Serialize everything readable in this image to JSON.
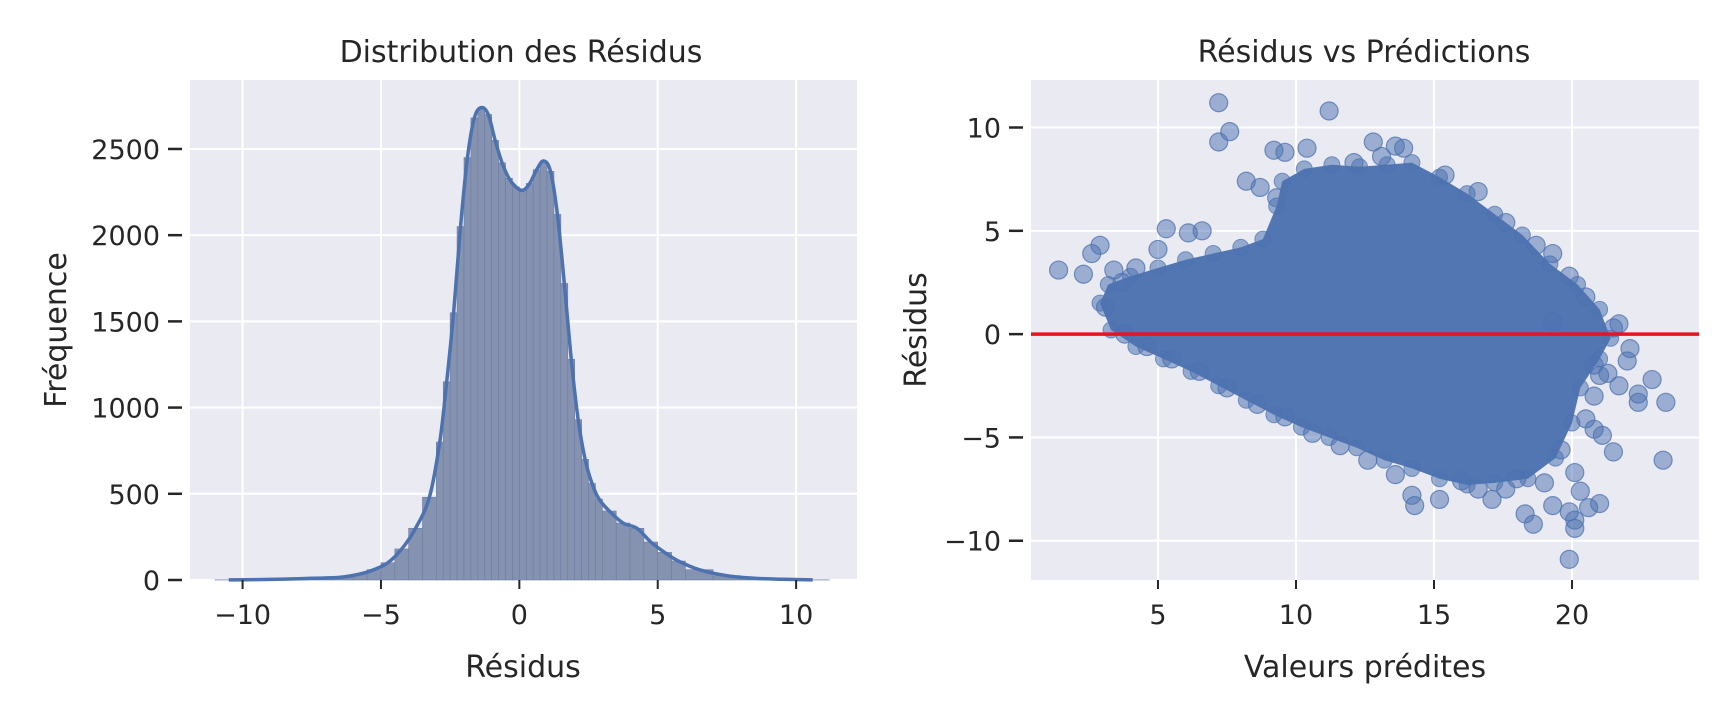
{
  "chart_data": [
    {
      "type": "bar",
      "title": "Distribution des Résidus",
      "xlabel": "Résidus",
      "ylabel": "Fréquence",
      "xlim": [
        -11.9,
        12.2
      ],
      "ylim": [
        0,
        2900
      ],
      "xticks": [
        -10,
        -5,
        0,
        5,
        10
      ],
      "xtick_labels": [
        "−10",
        "−5",
        "0",
        "5",
        "10"
      ],
      "yticks": [
        0,
        500,
        1000,
        1500,
        2000,
        2500
      ],
      "ytick_labels": [
        "0",
        "500",
        "1000",
        "1500",
        "2000",
        "2500"
      ],
      "grid": true,
      "kde_line": true,
      "bin_edges": [
        -11,
        -10,
        -9,
        -8,
        -7,
        -6,
        -5.5,
        -5,
        -4.5,
        -4,
        -3.5,
        -3,
        -2.75,
        -2.5,
        -2.25,
        -2,
        -1.75,
        -1.5,
        -1.25,
        -1,
        -0.75,
        -0.5,
        -0.25,
        0,
        0.25,
        0.5,
        0.75,
        1,
        1.25,
        1.5,
        1.75,
        2,
        2.25,
        2.5,
        2.75,
        3,
        3.5,
        4,
        4.5,
        5,
        5.5,
        6,
        7,
        8,
        9,
        10,
        11.2
      ],
      "counts": [
        1,
        2,
        5,
        10,
        15,
        35,
        60,
        100,
        180,
        300,
        480,
        800,
        1150,
        1550,
        2050,
        2450,
        2680,
        2740,
        2700,
        2550,
        2420,
        2330,
        2280,
        2260,
        2300,
        2380,
        2430,
        2370,
        2120,
        1720,
        1280,
        930,
        700,
        560,
        470,
        400,
        330,
        300,
        220,
        160,
        110,
        60,
        25,
        10,
        4,
        1
      ]
    },
    {
      "type": "scatter",
      "title": "Résidus vs Prédictions",
      "xlabel": "Valeurs prédites",
      "ylabel": "Résidus",
      "xlim": [
        0.4,
        24.6
      ],
      "ylim": [
        -11.9,
        12.3
      ],
      "xticks": [
        5,
        10,
        15,
        20
      ],
      "xtick_labels": [
        "5",
        "10",
        "15",
        "20"
      ],
      "yticks": [
        -10,
        -5,
        0,
        5,
        10
      ],
      "ytick_labels": [
        "−10",
        "−5",
        "0",
        "5",
        "10"
      ],
      "grid": true,
      "reference_line_y": 0,
      "reference_line_color": "#e8141e",
      "outlier_points": [
        {
          "x": 1.4,
          "y": 3.1
        },
        {
          "x": 2.3,
          "y": 2.9
        },
        {
          "x": 2.6,
          "y": 3.9
        },
        {
          "x": 2.9,
          "y": 4.3
        },
        {
          "x": 3.4,
          "y": 3.1
        },
        {
          "x": 7.2,
          "y": 11.2
        },
        {
          "x": 7.2,
          "y": 9.3
        },
        {
          "x": 7.6,
          "y": 9.8
        },
        {
          "x": 11.2,
          "y": 10.8
        },
        {
          "x": 9.2,
          "y": 8.9
        },
        {
          "x": 9.6,
          "y": 8.8
        },
        {
          "x": 10.4,
          "y": 9.0
        },
        {
          "x": 12.8,
          "y": 9.3
        },
        {
          "x": 13.9,
          "y": 9.0
        },
        {
          "x": 5.3,
          "y": 5.1
        },
        {
          "x": 6.1,
          "y": 4.9
        },
        {
          "x": 8.2,
          "y": 7.4
        },
        {
          "x": 14.2,
          "y": -7.8
        },
        {
          "x": 14.3,
          "y": -8.3
        },
        {
          "x": 15.2,
          "y": -8.0
        },
        {
          "x": 17.1,
          "y": -8.0
        },
        {
          "x": 17.6,
          "y": -7.5
        },
        {
          "x": 18.3,
          "y": -8.7
        },
        {
          "x": 18.6,
          "y": -9.2
        },
        {
          "x": 19.3,
          "y": -8.3
        },
        {
          "x": 19.9,
          "y": -8.6
        },
        {
          "x": 20.1,
          "y": -9.0
        },
        {
          "x": 20.1,
          "y": -9.4
        },
        {
          "x": 19.9,
          "y": -10.9
        },
        {
          "x": 20.6,
          "y": -8.4
        },
        {
          "x": 21.0,
          "y": -8.2
        },
        {
          "x": 20.3,
          "y": -7.6
        },
        {
          "x": 21.5,
          "y": -5.7
        },
        {
          "x": 21.1,
          "y": -4.9
        },
        {
          "x": 20.8,
          "y": -4.6
        },
        {
          "x": 22.4,
          "y": -2.9
        },
        {
          "x": 22.4,
          "y": -3.3
        },
        {
          "x": 22.9,
          "y": -2.2
        },
        {
          "x": 23.4,
          "y": -3.3
        },
        {
          "x": 23.3,
          "y": -6.1
        },
        {
          "x": 21.7,
          "y": -2.5
        },
        {
          "x": 22.0,
          "y": -1.3
        },
        {
          "x": 21.5,
          "y": 0.3
        },
        {
          "x": 21.7,
          "y": 0.5
        },
        {
          "x": 22.1,
          "y": -0.7
        },
        {
          "x": 21.3,
          "y": -1.9
        },
        {
          "x": 20.8,
          "y": -1.5
        },
        {
          "x": 20.5,
          "y": 1.8
        },
        {
          "x": 19.9,
          "y": 2.8
        },
        {
          "x": 19.3,
          "y": 3.9
        },
        {
          "x": 18.7,
          "y": 4.3
        },
        {
          "x": 17.6,
          "y": 5.4
        },
        {
          "x": 16.6,
          "y": 6.9
        },
        {
          "x": 15.4,
          "y": 7.7
        },
        {
          "x": 13.1,
          "y": 8.6
        },
        {
          "x": 12.1,
          "y": 8.3
        },
        {
          "x": 9.3,
          "y": 6.6
        },
        {
          "x": 8.7,
          "y": 7.1
        },
        {
          "x": 6.6,
          "y": 5.0
        },
        {
          "x": 5.0,
          "y": 4.1
        },
        {
          "x": 4.2,
          "y": 3.2
        },
        {
          "x": 3.7,
          "y": 2.5
        },
        {
          "x": 3.1,
          "y": 1.3
        },
        {
          "x": 3.8,
          "y": 0.0
        },
        {
          "x": 4.6,
          "y": -0.6
        },
        {
          "x": 5.5,
          "y": -1.2
        },
        {
          "x": 6.5,
          "y": -1.8
        },
        {
          "x": 7.5,
          "y": -2.6
        },
        {
          "x": 8.6,
          "y": -3.4
        },
        {
          "x": 9.6,
          "y": -4.0
        },
        {
          "x": 10.6,
          "y": -4.8
        },
        {
          "x": 11.6,
          "y": -5.4
        },
        {
          "x": 12.6,
          "y": -6.1
        },
        {
          "x": 13.6,
          "y": -6.8
        },
        {
          "x": 16.0,
          "y": -7.1
        },
        {
          "x": 16.6,
          "y": -7.5
        },
        {
          "x": 18.0,
          "y": -7.0
        },
        {
          "x": 19.0,
          "y": -7.2
        },
        {
          "x": 20.1,
          "y": -6.7
        },
        {
          "x": 19.6,
          "y": -5.6
        },
        {
          "x": 20.8,
          "y": -3.0
        },
        {
          "x": 21.0,
          "y": -2.0
        },
        {
          "x": 20.5,
          "y": -4.1
        },
        {
          "x": 19.3,
          "y": 0.6
        },
        {
          "x": 13.6,
          "y": 9.1
        }
      ],
      "cloud_envelope": [
        {
          "x": 2.9,
          "y": 1.5
        },
        {
          "x": 3.2,
          "y": 2.4
        },
        {
          "x": 4.0,
          "y": 2.8
        },
        {
          "x": 5.0,
          "y": 3.2
        },
        {
          "x": 6.0,
          "y": 3.6
        },
        {
          "x": 7.0,
          "y": 3.9
        },
        {
          "x": 8.0,
          "y": 4.2
        },
        {
          "x": 8.8,
          "y": 4.6
        },
        {
          "x": 9.3,
          "y": 6.2
        },
        {
          "x": 9.5,
          "y": 7.4
        },
        {
          "x": 10.3,
          "y": 8.0
        },
        {
          "x": 11.3,
          "y": 8.2
        },
        {
          "x": 12.3,
          "y": 8.1
        },
        {
          "x": 13.3,
          "y": 8.2
        },
        {
          "x": 14.2,
          "y": 8.3
        },
        {
          "x": 15.2,
          "y": 7.6
        },
        {
          "x": 16.2,
          "y": 6.8
        },
        {
          "x": 17.2,
          "y": 5.8
        },
        {
          "x": 18.2,
          "y": 4.8
        },
        {
          "x": 19.2,
          "y": 3.4
        },
        {
          "x": 20.2,
          "y": 2.4
        },
        {
          "x": 21.0,
          "y": 1.2
        },
        {
          "x": 21.4,
          "y": -0.2
        },
        {
          "x": 21.0,
          "y": -1.2
        },
        {
          "x": 20.3,
          "y": -2.6
        },
        {
          "x": 20.0,
          "y": -4.3
        },
        {
          "x": 19.4,
          "y": -6.0
        },
        {
          "x": 18.4,
          "y": -7.0
        },
        {
          "x": 17.2,
          "y": -7.2
        },
        {
          "x": 16.2,
          "y": -7.3
        },
        {
          "x": 15.2,
          "y": -7.0
        },
        {
          "x": 14.2,
          "y": -6.5
        },
        {
          "x": 13.2,
          "y": -6.1
        },
        {
          "x": 12.2,
          "y": -5.5
        },
        {
          "x": 11.2,
          "y": -5.0
        },
        {
          "x": 10.2,
          "y": -4.5
        },
        {
          "x": 9.2,
          "y": -3.9
        },
        {
          "x": 8.2,
          "y": -3.2
        },
        {
          "x": 7.2,
          "y": -2.5
        },
        {
          "x": 6.2,
          "y": -1.8
        },
        {
          "x": 5.2,
          "y": -1.2
        },
        {
          "x": 4.2,
          "y": -0.6
        },
        {
          "x": 3.3,
          "y": 0.2
        }
      ]
    }
  ],
  "colors": {
    "series": "#4c72b0",
    "hist_fill": "#8592b0",
    "axes_bg": "#eaeaf2",
    "grid": "#ffffff",
    "reference_line": "#e8141e",
    "text": "#262626"
  }
}
